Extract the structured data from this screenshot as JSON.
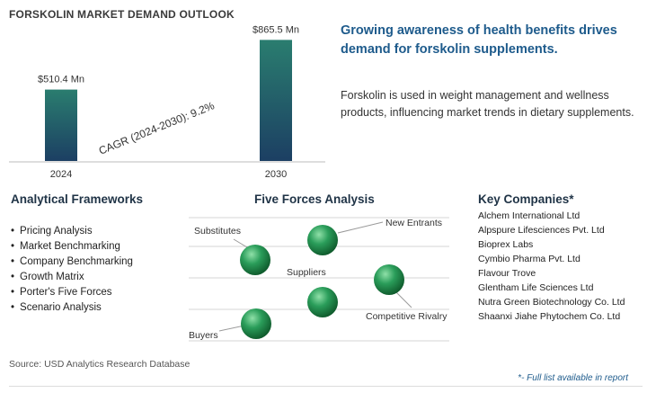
{
  "title": "FORSKOLIN MARKET DEMAND OUTLOOK",
  "headline": "Growing awareness of health benefits drives demand for forskolin supplements.",
  "description": "Forskolin is used in weight management and wellness products, influencing market trends in dietary supplements.",
  "chart_data": {
    "type": "bar",
    "categories": [
      "2024",
      "2030"
    ],
    "values": [
      510.4,
      865.5
    ],
    "value_labels": [
      "$510.4 Mn",
      "$865.5 Mn"
    ],
    "annotation": "CAGR (2024-2030): 9.2%",
    "ylim": [
      0,
      900
    ],
    "grid": false,
    "bar_color_top": "#2a7d6f",
    "bar_color_bottom": "#1c3f63"
  },
  "analytical_frameworks": {
    "title": "Analytical Frameworks",
    "items": [
      "Pricing Analysis",
      "Market Benchmarking",
      "Company Benchmarking",
      "Growth Matrix",
      "Porter's Five Forces",
      "Scenario Analysis"
    ]
  },
  "five_forces": {
    "title": "Five Forces Analysis",
    "forces": [
      "Substitutes",
      "New Entrants",
      "Suppliers",
      "Competitive Rivalry",
      "Buyers"
    ],
    "sphere_color": "#2a9d5a"
  },
  "key_companies": {
    "title": "Key Companies*",
    "items": [
      "Alchem International Ltd",
      "Alpspure Lifesciences Pvt. Ltd",
      "Bioprex Labs",
      "Cymbio Pharma Pvt. Ltd",
      "Flavour Trove",
      "Glentham Life Sciences Ltd",
      "Nutra Green Biotechnology Co. Ltd",
      "Shaanxi Jiahe Phytochem Co. Ltd"
    ]
  },
  "source": "Source: USD Analytics Research Database",
  "footnote": "*- Full list available in report"
}
